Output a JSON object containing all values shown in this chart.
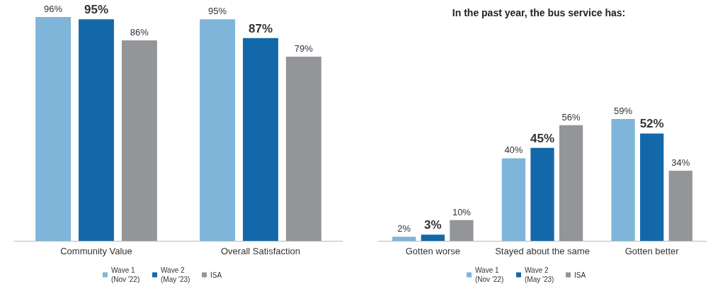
{
  "chart_data": [
    {
      "type": "bar",
      "categories": [
        "Community Value",
        "Overall Satisfaction"
      ],
      "series": [
        {
          "name": "Wave 1 (Nov '22)",
          "color": "#7fb5d8",
          "values": [
            96,
            95
          ],
          "value_labels": [
            "96%",
            "95%"
          ]
        },
        {
          "name": "Wave 2 (May '23)",
          "color": "#1368aa",
          "values": [
            95,
            87
          ],
          "value_labels": [
            "95%",
            "87%"
          ]
        },
        {
          "name": "ISA",
          "color": "#939598",
          "values": [
            86,
            79
          ],
          "value_labels": [
            "86%",
            "79%"
          ]
        }
      ],
      "legend": "bottom"
    },
    {
      "type": "bar",
      "title": "In the past year, the bus service has:",
      "categories": [
        "Gotten worse",
        "Stayed about the same",
        "Gotten better"
      ],
      "series": [
        {
          "name": "Wave 1 (Nov '22)",
          "color": "#7fb5d8",
          "values": [
            2,
            40,
            59
          ],
          "value_labels": [
            "2%",
            "40%",
            "59%"
          ]
        },
        {
          "name": "Wave 2 (May '23)",
          "color": "#1368aa",
          "values": [
            3,
            45,
            52
          ],
          "value_labels": [
            "3%",
            "45%",
            "52%"
          ]
        },
        {
          "name": "ISA",
          "color": "#939598",
          "values": [
            10,
            56,
            34
          ],
          "value_labels": [
            "10%",
            "56%",
            "34%"
          ]
        }
      ],
      "legend": "bottom"
    }
  ]
}
